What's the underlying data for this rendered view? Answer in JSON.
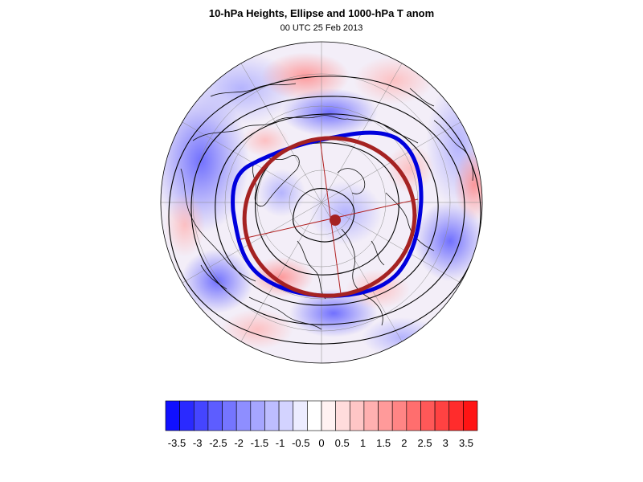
{
  "header": {
    "title": "10-hPa Heights, Ellipse and 1000-hPa T anom",
    "subtitle": "00 UTC 25 Feb 2013"
  },
  "colors": {
    "vortex_contour": "#0000dd",
    "ellipse": "#a52222",
    "height_contours": "#000000",
    "coastline": "#000000"
  },
  "colorbar": {
    "levels": [
      "-3.5",
      "-3",
      "-2.5",
      "-2",
      "-1.5",
      "-1",
      "-0.5",
      "0",
      "0.5",
      "1",
      "1.5",
      "2",
      "2.5",
      "3",
      "3.5"
    ],
    "colors": [
      "#1010ff",
      "#2a2aff",
      "#4545ff",
      "#5d5dff",
      "#7575ff",
      "#8e8eff",
      "#a6a6ff",
      "#bdbdff",
      "#d3d3ff",
      "#ececff",
      "#ffffff",
      "#fff2f2",
      "#ffdcdc",
      "#ffc6c6",
      "#ffb0b0",
      "#ff9a9a",
      "#ff8585",
      "#ff6e6e",
      "#ff5858",
      "#ff4242",
      "#ff2c2c",
      "#ff1414"
    ]
  }
}
